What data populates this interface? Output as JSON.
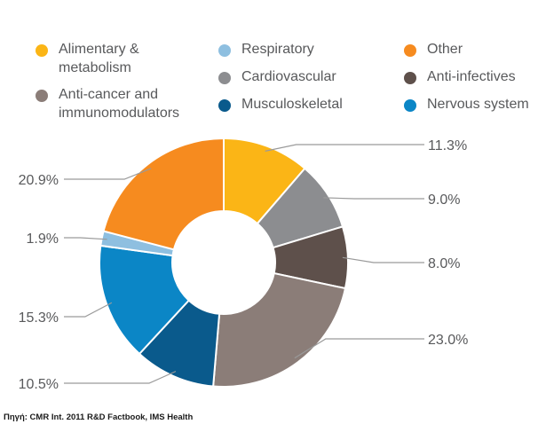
{
  "chart_data": {
    "type": "pie",
    "donut": true,
    "categories": [
      "Alimentary & metabolism",
      "Cardiovascular",
      "Anti-infectives",
      "Anti-cancer and immunomodulators",
      "Musculoskeletal",
      "Nervous system",
      "Respiratory",
      "Other"
    ],
    "values": [
      11.3,
      9.0,
      8.0,
      23.0,
      10.5,
      15.3,
      1.9,
      20.9
    ],
    "value_labels": [
      "11.3%",
      "9.0%",
      "8.0%",
      "23.0%",
      "10.5%",
      "15.3%",
      "1.9%",
      "20.9%"
    ],
    "colors": [
      "#fbb516",
      "#8c8d90",
      "#5e504b",
      "#8b7d78",
      "#0a5a8c",
      "#0b86c6",
      "#8ebfe0",
      "#f68b1f"
    ],
    "legend_placement": "top"
  },
  "legend": [
    {
      "label": "Alimentary &\nmetabolism",
      "color": "#fbb516"
    },
    {
      "label": "Respiratory",
      "color": "#8ebfe0"
    },
    {
      "label": "Other",
      "color": "#f68b1f"
    },
    {
      "label": "Cardiovascular",
      "color": "#8c8d90"
    },
    {
      "label": "Anti-infectives",
      "color": "#5e504b"
    },
    {
      "label": "Anti-cancer and\nimmunomodulators",
      "color": "#8b7d78"
    },
    {
      "label": "Musculoskeletal",
      "color": "#0a5a8c"
    },
    {
      "label": "Nervous system",
      "color": "#0b86c6"
    }
  ],
  "source": "Πηγή: CMR Int. 2011 R&D Factbook, IMS Health"
}
